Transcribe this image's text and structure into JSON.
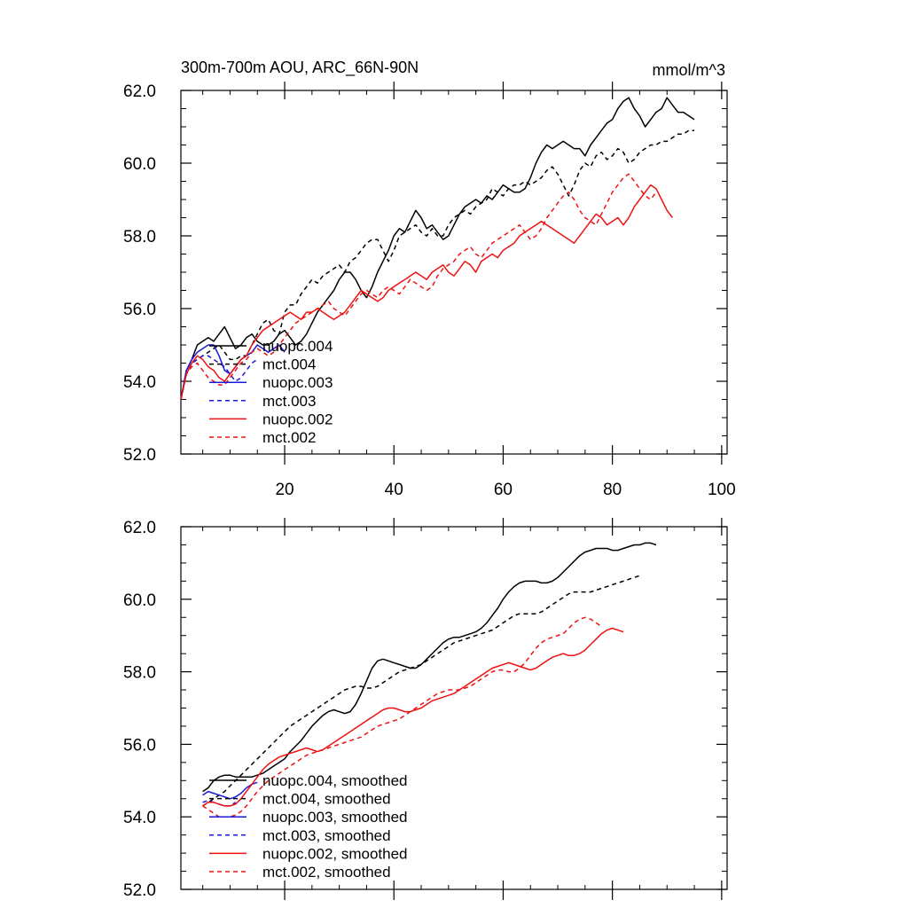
{
  "header": {
    "title": "300m-700m AOU, ARC_66N-90N",
    "units": "mmol/m^3"
  },
  "chart_data": [
    {
      "type": "line",
      "title": "300m-700m AOU, ARC_66N-90N",
      "ylabel": "mmol/m^3",
      "xlim": [
        1,
        101
      ],
      "ylim": [
        52,
        62
      ],
      "x_ticks": [
        20,
        40,
        60,
        80,
        100
      ],
      "x_tick_labels": [
        "20",
        "40",
        "60",
        "80",
        "100"
      ],
      "y_ticks": [
        52,
        54,
        56,
        58,
        60,
        62
      ],
      "y_tick_labels": [
        "52.0",
        "54.0",
        "56.0",
        "58.0",
        "60.0",
        "62.0"
      ],
      "grid": false,
      "legend_position": "lower-left",
      "series": [
        {
          "name": "nuopc.004",
          "color": "#000000",
          "dash": "solid",
          "x_start": 1,
          "values": [
            53.5,
            54.3,
            54.6,
            55.0,
            55.1,
            55.2,
            55.1,
            55.3,
            55.5,
            55.2,
            54.9,
            55.0,
            55.2,
            55.3,
            55.1,
            55.0,
            55.0,
            55.1,
            55.3,
            55.4,
            55.2,
            55.0,
            55.1,
            55.3,
            55.6,
            55.9,
            56.1,
            56.3,
            56.5,
            56.8,
            57.0,
            57.0,
            56.8,
            56.5,
            56.3,
            56.6,
            57.0,
            57.3,
            57.6,
            58.0,
            58.2,
            58.1,
            58.4,
            58.7,
            58.5,
            58.2,
            58.3,
            58.1,
            57.9,
            58.0,
            58.3,
            58.6,
            58.8,
            58.9,
            59.0,
            58.9,
            59.1,
            59.0,
            59.2,
            59.4,
            59.3,
            59.2,
            59.2,
            59.3,
            59.6,
            60.0,
            60.3,
            60.5,
            60.4,
            60.5,
            60.6,
            60.5,
            60.4,
            60.4,
            60.2,
            60.5,
            60.7,
            60.9,
            61.1,
            61.2,
            61.5,
            61.7,
            61.8,
            61.5,
            61.3,
            61.0,
            61.2,
            61.4,
            61.5,
            61.8,
            61.6,
            61.4,
            61.4,
            61.3,
            61.2
          ]
        },
        {
          "name": "mct.004",
          "color": "#000000",
          "dash": "dashed",
          "x_start": 1,
          "values": [
            53.5,
            54.2,
            54.5,
            54.6,
            54.7,
            54.8,
            54.9,
            55.0,
            54.8,
            54.6,
            54.6,
            54.7,
            54.7,
            55.0,
            55.3,
            55.6,
            55.7,
            55.4,
            55.3,
            55.9,
            56.1,
            56.1,
            56.4,
            56.6,
            56.8,
            56.7,
            56.9,
            57.0,
            57.1,
            57.2,
            57.0,
            57.3,
            57.4,
            57.6,
            57.8,
            57.9,
            57.9,
            57.6,
            57.3,
            57.6,
            58.0,
            58.1,
            58.2,
            58.3,
            58.1,
            58.0,
            58.2,
            58.0,
            58.0,
            58.3,
            58.5,
            58.6,
            58.7,
            58.6,
            58.8,
            58.9,
            59.0,
            59.3,
            59.2,
            59.1,
            59.3,
            59.4,
            59.4,
            59.5,
            59.4,
            59.5,
            59.6,
            59.8,
            59.9,
            59.7,
            59.4,
            59.1,
            59.4,
            59.8,
            60.0,
            59.9,
            60.2,
            60.3,
            60.1,
            60.2,
            60.4,
            60.3,
            60.0,
            60.1,
            60.3,
            60.4,
            60.5,
            60.5,
            60.6,
            60.6,
            60.7,
            60.8,
            60.8,
            60.9,
            60.9
          ]
        },
        {
          "name": "nuopc.003",
          "color": "#1a1adb",
          "dash": "solid",
          "x_start": 1,
          "values": [
            53.5,
            54.3,
            54.6,
            54.8,
            54.9,
            55.0,
            55.0,
            54.7,
            54.3,
            54.2,
            54.4,
            54.6,
            54.7,
            54.8,
            55.0,
            54.9,
            54.8,
            54.9,
            55.0,
            54.8
          ]
        },
        {
          "name": "mct.003",
          "color": "#1a1adb",
          "dash": "dashed",
          "x_start": 1,
          "values": [
            53.5,
            54.2,
            54.5,
            54.6,
            54.7,
            54.7,
            54.6,
            54.5,
            54.4,
            54.2,
            54.0,
            54.1,
            54.3,
            54.5,
            54.6
          ]
        },
        {
          "name": "nuopc.002",
          "color": "#ee1111",
          "dash": "solid",
          "x_start": 1,
          "values": [
            53.5,
            54.2,
            54.5,
            54.7,
            54.6,
            54.4,
            54.3,
            54.1,
            54.0,
            54.2,
            54.4,
            54.6,
            54.7,
            55.0,
            55.2,
            55.4,
            55.5,
            55.6,
            55.7,
            55.8,
            55.9,
            55.8,
            55.7,
            55.9,
            55.9,
            56.0,
            55.9,
            55.8,
            55.7,
            55.8,
            55.9,
            56.1,
            56.3,
            56.5,
            56.4,
            56.3,
            56.2,
            56.3,
            56.5,
            56.6,
            56.7,
            56.8,
            56.9,
            57.0,
            56.9,
            56.8,
            57.0,
            57.1,
            57.2,
            57.0,
            56.9,
            57.1,
            57.3,
            57.2,
            57.0,
            57.3,
            57.4,
            57.5,
            57.4,
            57.6,
            57.7,
            57.8,
            58.0,
            58.1,
            58.2,
            58.3,
            58.4,
            58.3,
            58.2,
            58.1,
            58.0,
            57.9,
            57.8,
            58.0,
            58.2,
            58.4,
            58.6,
            58.5,
            58.3,
            58.4,
            58.5,
            58.3,
            58.5,
            58.8,
            59.0,
            59.2,
            59.4,
            59.3,
            59.0,
            58.7,
            58.5
          ]
        },
        {
          "name": "mct.002",
          "color": "#ee1111",
          "dash": "dashed",
          "x_start": 1,
          "values": [
            53.5,
            54.2,
            54.4,
            54.5,
            54.3,
            54.1,
            54.0,
            53.9,
            53.9,
            54.1,
            54.3,
            54.5,
            54.6,
            54.8,
            54.9,
            54.8,
            54.7,
            54.8,
            55.0,
            55.2,
            55.4,
            55.6,
            55.7,
            55.8,
            55.9,
            56.0,
            56.1,
            56.2,
            56.0,
            55.9,
            55.8,
            56.0,
            56.2,
            56.4,
            56.5,
            56.4,
            56.3,
            56.5,
            56.6,
            56.5,
            56.4,
            56.6,
            56.8,
            56.7,
            56.6,
            56.5,
            56.6,
            56.9,
            57.1,
            57.2,
            57.3,
            57.5,
            57.6,
            57.7,
            57.5,
            57.4,
            57.6,
            57.8,
            57.9,
            58.0,
            58.1,
            58.2,
            58.3,
            58.1,
            57.9,
            58.0,
            58.2,
            58.5,
            58.7,
            58.9,
            59.1,
            59.2,
            59.0,
            58.7,
            58.5,
            58.4,
            58.3,
            58.6,
            58.9,
            59.2,
            59.4,
            59.6,
            59.7,
            59.5,
            59.3,
            59.1,
            59.0,
            59.2
          ]
        }
      ]
    },
    {
      "type": "line",
      "title": "",
      "xlim": [
        1,
        101
      ],
      "ylim": [
        52,
        62
      ],
      "x_ticks": [
        20,
        40,
        60,
        80,
        100
      ],
      "x_tick_labels": [],
      "y_ticks": [
        52,
        54,
        56,
        58,
        60,
        62
      ],
      "y_tick_labels": [
        "52.0",
        "54.0",
        "56.0",
        "58.0",
        "60.0",
        "62.0"
      ],
      "grid": false,
      "legend_position": "lower-left",
      "series": [
        {
          "name": "nuopc.004, smoothed",
          "color": "#000000",
          "dash": "solid",
          "x_start": 5,
          "values": [
            54.7,
            54.8,
            55.0,
            55.1,
            55.15,
            55.15,
            55.1,
            55.1,
            55.1,
            55.1,
            55.15,
            55.2,
            55.3,
            55.4,
            55.5,
            55.6,
            55.8,
            55.95,
            56.1,
            56.3,
            56.5,
            56.65,
            56.8,
            56.9,
            56.95,
            56.9,
            56.85,
            56.9,
            57.1,
            57.4,
            57.75,
            58.1,
            58.3,
            58.35,
            58.3,
            58.25,
            58.2,
            58.15,
            58.1,
            58.1,
            58.2,
            58.35,
            58.5,
            58.65,
            58.8,
            58.9,
            58.95,
            58.95,
            59.0,
            59.05,
            59.1,
            59.2,
            59.35,
            59.55,
            59.75,
            60.0,
            60.2,
            60.35,
            60.45,
            60.5,
            60.5,
            60.5,
            60.45,
            60.45,
            60.5,
            60.6,
            60.75,
            60.9,
            61.05,
            61.2,
            61.3,
            61.35,
            61.4,
            61.4,
            61.4,
            61.35,
            61.35,
            61.4,
            61.45,
            61.5,
            61.5,
            61.55,
            61.55,
            61.5
          ]
        },
        {
          "name": "mct.004, smoothed",
          "color": "#000000",
          "dash": "dashed",
          "x_start": 5,
          "values": [
            54.3,
            54.4,
            54.5,
            54.6,
            54.7,
            54.85,
            55.0,
            55.15,
            55.3,
            55.45,
            55.6,
            55.75,
            55.9,
            56.05,
            56.2,
            56.35,
            56.5,
            56.6,
            56.7,
            56.8,
            56.9,
            57.0,
            57.1,
            57.2,
            57.3,
            57.4,
            57.5,
            57.55,
            57.6,
            57.6,
            57.55,
            57.55,
            57.6,
            57.7,
            57.8,
            57.9,
            58.0,
            58.05,
            58.1,
            58.15,
            58.2,
            58.3,
            58.4,
            58.5,
            58.6,
            58.7,
            58.8,
            58.85,
            58.9,
            58.95,
            59.0,
            59.05,
            59.1,
            59.15,
            59.25,
            59.35,
            59.45,
            59.55,
            59.6,
            59.6,
            59.6,
            59.6,
            59.65,
            59.75,
            59.85,
            59.95,
            60.05,
            60.15,
            60.2,
            60.2,
            60.2,
            60.2,
            60.25,
            60.3,
            60.35,
            60.4,
            60.45,
            60.5,
            60.55,
            60.6,
            60.65
          ]
        },
        {
          "name": "nuopc.003, smoothed",
          "color": "#1a1adb",
          "dash": "solid",
          "x_start": 5,
          "values": [
            54.6,
            54.7,
            54.65,
            54.6,
            54.55,
            54.5,
            54.55,
            54.65,
            54.8,
            54.9,
            54.95
          ]
        },
        {
          "name": "mct.003, smoothed",
          "color": "#1a1adb",
          "dash": "dashed",
          "x_start": 5,
          "values": [
            54.4,
            54.45,
            54.4,
            54.35,
            54.3,
            54.3,
            54.4
          ]
        },
        {
          "name": "nuopc.002, smoothed",
          "color": "#ee1111",
          "dash": "solid",
          "x_start": 5,
          "values": [
            54.3,
            54.4,
            54.4,
            54.35,
            54.3,
            54.3,
            54.35,
            54.5,
            54.7,
            54.9,
            55.1,
            55.3,
            55.45,
            55.55,
            55.65,
            55.7,
            55.75,
            55.8,
            55.85,
            55.9,
            55.85,
            55.8,
            55.85,
            55.95,
            56.05,
            56.15,
            56.25,
            56.35,
            56.45,
            56.55,
            56.65,
            56.75,
            56.85,
            56.95,
            57.0,
            57.0,
            56.95,
            56.9,
            56.9,
            56.95,
            57.0,
            57.1,
            57.2,
            57.25,
            57.3,
            57.35,
            57.4,
            57.5,
            57.6,
            57.7,
            57.8,
            57.9,
            58.0,
            58.1,
            58.15,
            58.2,
            58.25,
            58.2,
            58.15,
            58.1,
            58.05,
            58.1,
            58.2,
            58.3,
            58.4,
            58.45,
            58.5,
            58.45,
            58.45,
            58.5,
            58.6,
            58.75,
            58.9,
            59.05,
            59.15,
            59.2,
            59.15,
            59.1
          ]
        },
        {
          "name": "mct.002, smoothed",
          "color": "#ee1111",
          "dash": "dashed",
          "x_start": 5,
          "values": [
            54.3,
            54.2,
            54.1,
            54.0,
            54.0,
            54.0,
            54.05,
            54.15,
            54.3,
            54.5,
            54.7,
            54.85,
            55.0,
            55.1,
            55.2,
            55.3,
            55.4,
            55.5,
            55.6,
            55.7,
            55.75,
            55.8,
            55.85,
            55.9,
            55.95,
            56.0,
            56.05,
            56.1,
            56.15,
            56.2,
            56.3,
            56.4,
            56.5,
            56.55,
            56.6,
            56.65,
            56.7,
            56.8,
            56.9,
            57.0,
            57.1,
            57.2,
            57.3,
            57.4,
            57.45,
            57.5,
            57.5,
            57.5,
            57.55,
            57.6,
            57.7,
            57.8,
            57.9,
            58.0,
            58.05,
            58.05,
            58.0,
            58.0,
            58.1,
            58.25,
            58.45,
            58.65,
            58.8,
            58.9,
            58.95,
            59.0,
            59.05,
            59.2,
            59.35,
            59.45,
            59.5,
            59.45,
            59.35,
            59.25
          ]
        }
      ]
    }
  ]
}
